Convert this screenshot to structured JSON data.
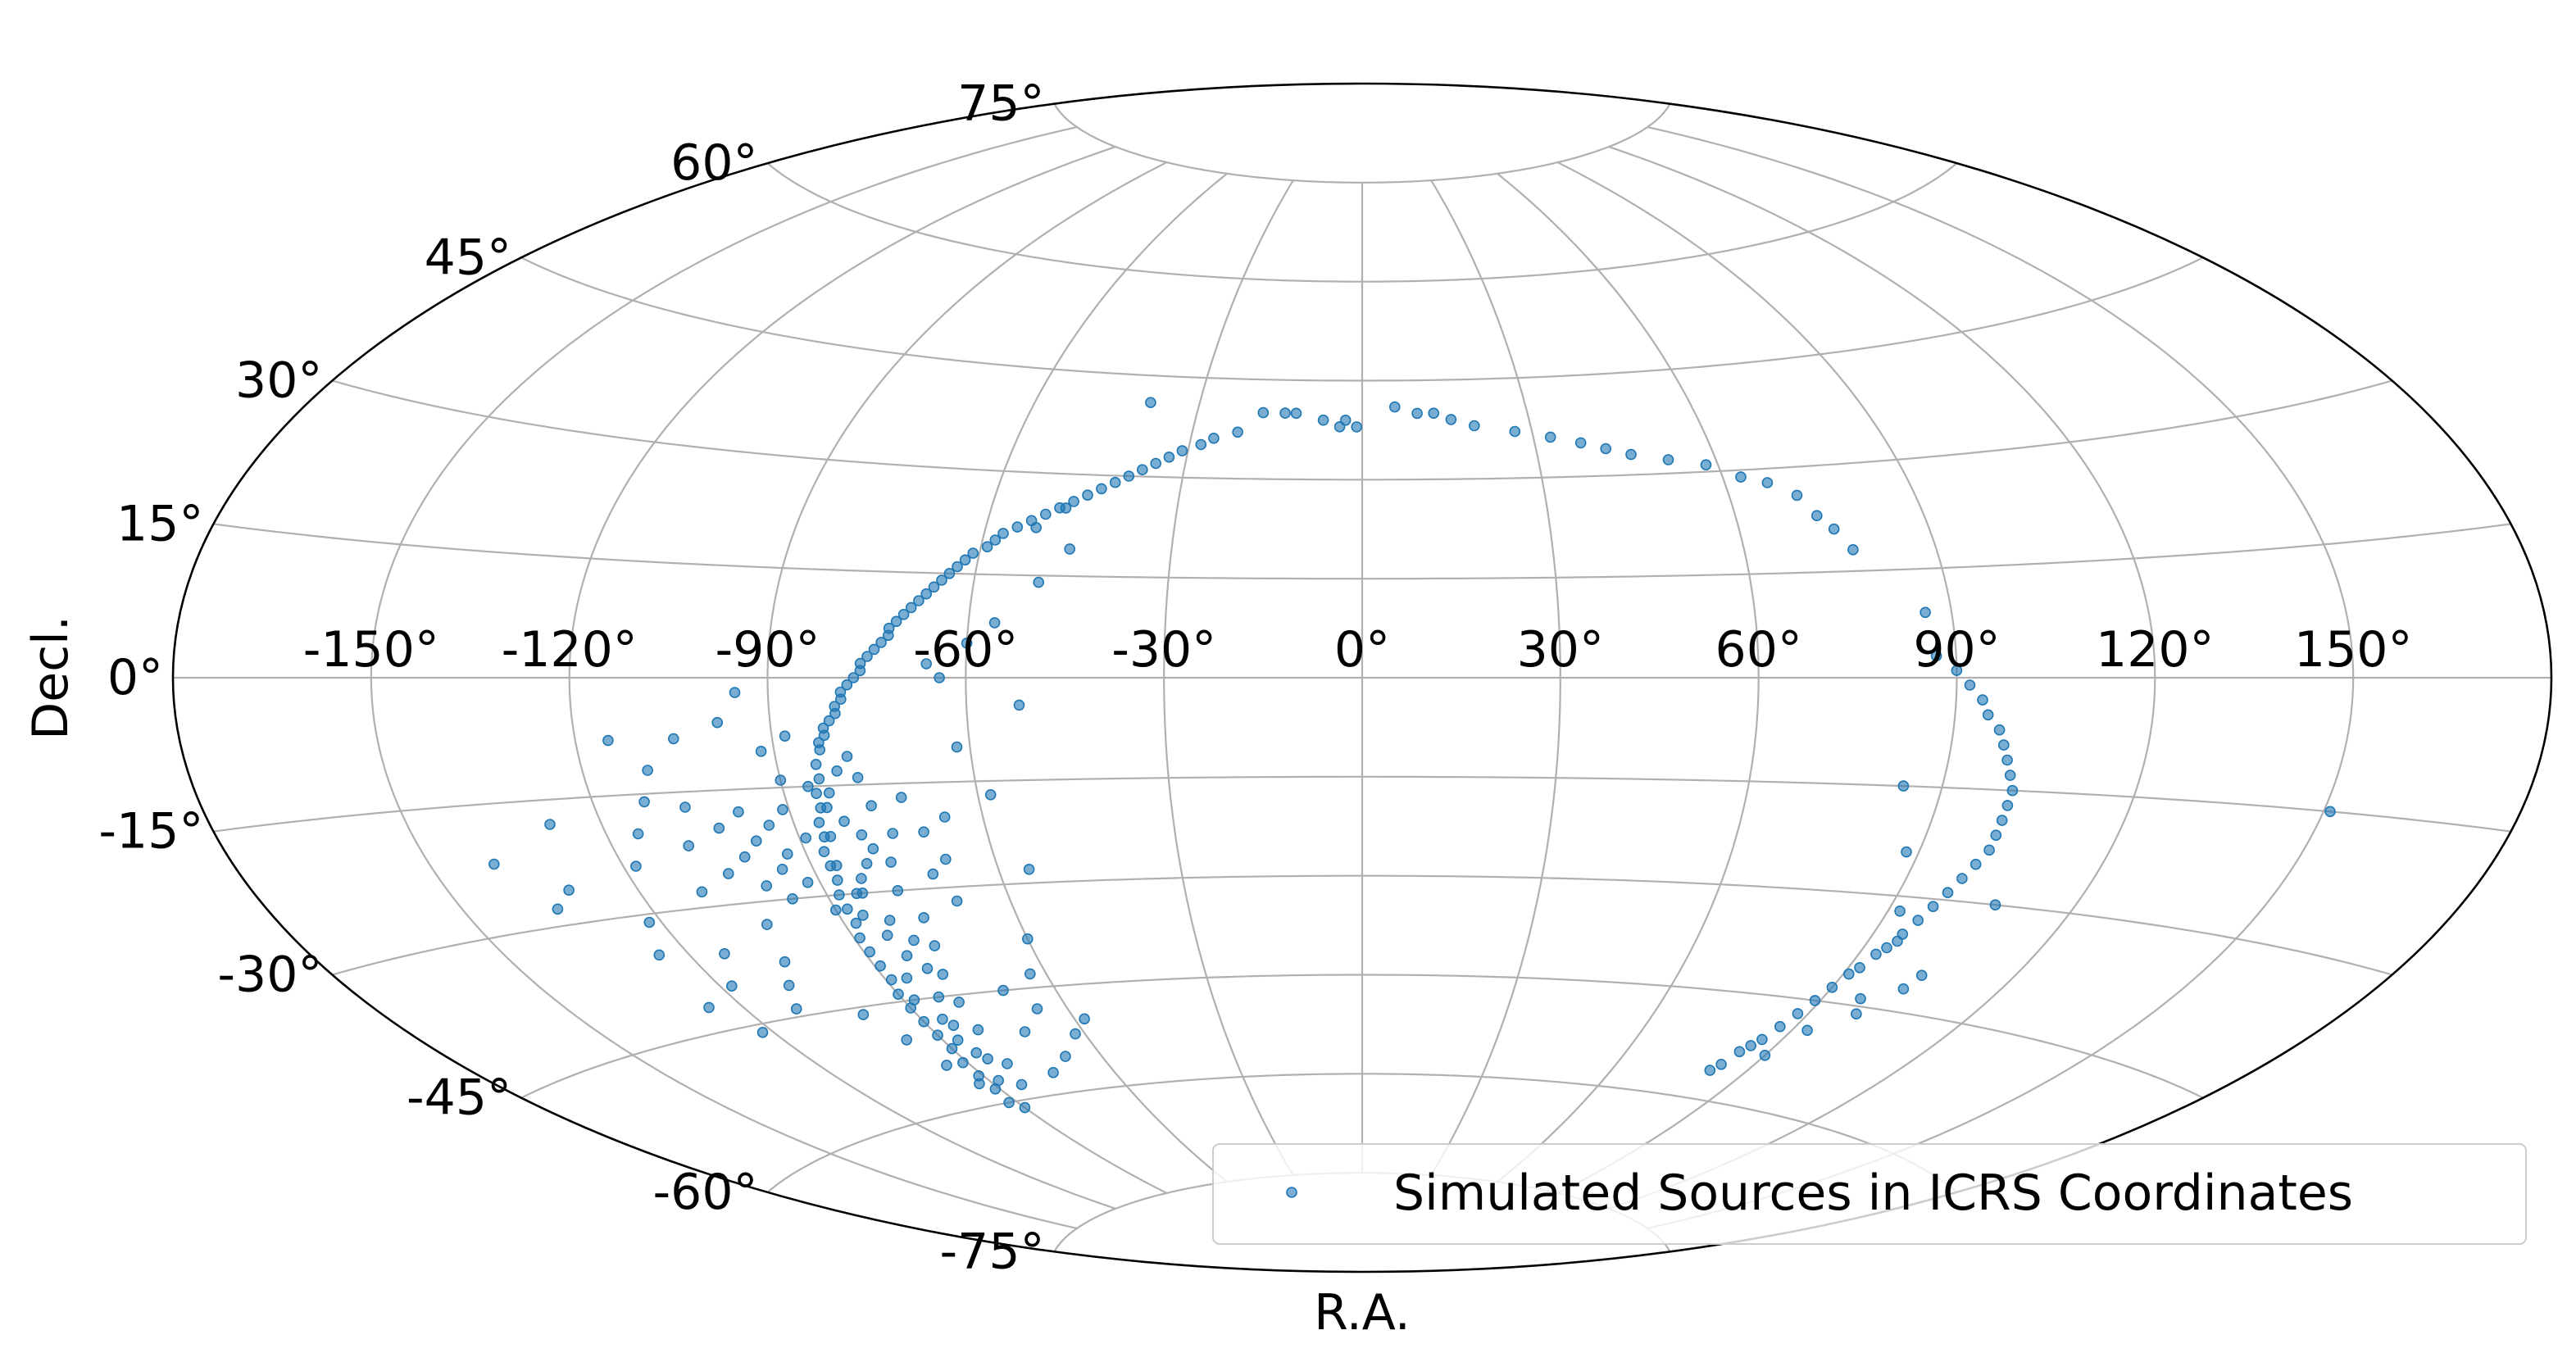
{
  "chart_data": {
    "type": "scatter",
    "projection": "aitoff",
    "title": "",
    "xlabel": "R.A.",
    "ylabel": "Decl.",
    "xlim": [
      -180,
      180
    ],
    "ylim": [
      -90,
      90
    ],
    "grid": true,
    "x_ticks": [
      "-150°",
      "-120°",
      "-90°",
      "-60°",
      "-30°",
      "0°",
      "30°",
      "60°",
      "90°",
      "120°",
      "150°"
    ],
    "x_tick_values": [
      -150,
      -120,
      -90,
      -60,
      -30,
      0,
      30,
      60,
      90,
      120,
      150
    ],
    "y_ticks": [
      "-75°",
      "-60°",
      "-45°",
      "-30°",
      "-15°",
      "0°",
      "15°",
      "30°",
      "45°",
      "60°",
      "75°"
    ],
    "y_tick_values": [
      -75,
      -60,
      -45,
      -30,
      -15,
      0,
      15,
      30,
      45,
      60,
      75
    ],
    "legend": {
      "position": "lower-right",
      "entries": [
        "Simulated Sources in ICRS Coordinates"
      ]
    },
    "series": [
      {
        "name": "Simulated Sources in ICRS Coordinates",
        "color": "#1f77b4",
        "marker": "circle",
        "points": [
          [
            -39,
            41
          ],
          [
            -18,
            40
          ],
          [
            -14,
            40
          ],
          [
            -12,
            40
          ],
          [
            -7,
            39
          ],
          [
            -4,
            38
          ],
          [
            -3,
            39
          ],
          [
            -1,
            38
          ],
          [
            -22,
            37
          ],
          [
            -26,
            36
          ],
          [
            -28,
            35
          ],
          [
            -31,
            34
          ],
          [
            -33,
            33
          ],
          [
            -35,
            32
          ],
          [
            -37,
            31
          ],
          [
            -39,
            30
          ],
          [
            -41,
            29
          ],
          [
            -43,
            28
          ],
          [
            -45,
            27
          ],
          [
            -47,
            26
          ],
          [
            -49,
            25
          ],
          [
            -51,
            24
          ],
          [
            -53,
            23
          ],
          [
            -55,
            22
          ],
          [
            -57,
            21
          ],
          [
            -58,
            20
          ],
          [
            -59,
            19
          ],
          [
            -61,
            18
          ],
          [
            -62,
            17
          ],
          [
            -63,
            16
          ],
          [
            -64,
            15
          ],
          [
            -65,
            14
          ],
          [
            -66,
            13
          ],
          [
            -67,
            12
          ],
          [
            -68,
            11
          ],
          [
            -69,
            10
          ],
          [
            -70,
            9
          ],
          [
            -71,
            8
          ],
          [
            -72,
            7
          ],
          [
            -72,
            6
          ],
          [
            -73,
            5
          ],
          [
            -74,
            4
          ],
          [
            -75,
            3
          ],
          [
            -76,
            2
          ],
          [
            -76,
            1
          ],
          [
            -77,
            0
          ],
          [
            -78,
            -1
          ],
          [
            -79,
            -2
          ],
          [
            -79,
            -3
          ],
          [
            -80,
            -4
          ],
          [
            -80,
            -5
          ],
          [
            -81,
            -6
          ],
          [
            -82,
            -7
          ],
          [
            -82,
            -8
          ],
          [
            -83,
            -9
          ],
          [
            -83,
            -10
          ],
          [
            -84,
            -12
          ],
          [
            -84,
            -14
          ],
          [
            -85,
            -16
          ],
          [
            -85,
            -18
          ],
          [
            -86,
            -20
          ],
          [
            -86,
            -22
          ],
          [
            -87,
            -24
          ],
          [
            -87,
            -26
          ],
          [
            -87,
            -28
          ],
          [
            -88,
            -30
          ],
          [
            -88,
            -32
          ],
          [
            -88,
            -34
          ],
          [
            -89,
            -36
          ],
          [
            -89,
            -38
          ],
          [
            -89,
            -40
          ],
          [
            -89,
            -42
          ],
          [
            -90,
            -44
          ],
          [
            -90,
            -46
          ],
          [
            -90,
            -48
          ],
          [
            -90,
            -50
          ],
          [
            -90,
            -52
          ],
          [
            -91,
            -54
          ],
          [
            -91,
            -56
          ],
          [
            -91,
            -58
          ],
          [
            -92,
            -60
          ],
          [
            -90,
            -61
          ],
          [
            -86,
            -15
          ],
          [
            -84,
            -18
          ],
          [
            -82,
            -20
          ],
          [
            -80,
            -22
          ],
          [
            -79,
            -24
          ],
          [
            -81,
            -26
          ],
          [
            -83,
            -28
          ],
          [
            -85,
            -30
          ],
          [
            -86,
            -33
          ],
          [
            -84,
            -36
          ],
          [
            -83,
            -39
          ],
          [
            -86,
            -42
          ],
          [
            -88,
            -45
          ],
          [
            -86,
            -48
          ],
          [
            -87,
            -51
          ],
          [
            -85,
            -54
          ],
          [
            -88,
            -57
          ],
          [
            -84,
            -58
          ],
          [
            -82,
            -55
          ],
          [
            -81,
            -50
          ],
          [
            -80,
            -46
          ],
          [
            -79,
            -42
          ],
          [
            -77,
            -38
          ],
          [
            -76,
            -34
          ],
          [
            -78,
            -30
          ],
          [
            -77,
            -26
          ],
          [
            -75,
            -22
          ],
          [
            -77,
            -18
          ],
          [
            -78,
            -14
          ],
          [
            -79,
            -11
          ],
          [
            -81,
            -13
          ],
          [
            -83,
            -16
          ],
          [
            -85,
            -22
          ],
          [
            -86,
            -26
          ],
          [
            -84,
            -30
          ],
          [
            -82,
            -34
          ],
          [
            -80,
            -37
          ],
          [
            -81,
            -41
          ],
          [
            -83,
            -45
          ],
          [
            -85,
            -49
          ],
          [
            -86,
            -53
          ],
          [
            -89,
            -22
          ],
          [
            -91,
            -18
          ],
          [
            -93,
            -24
          ],
          [
            -92,
            -28
          ],
          [
            -90,
            -32
          ],
          [
            -94,
            -20
          ],
          [
            -95,
            -26
          ],
          [
            -96,
            -30
          ],
          [
            -97,
            -22
          ],
          [
            -98,
            -18
          ],
          [
            -100,
            -24
          ],
          [
            -99,
            -28
          ],
          [
            -102,
            -20
          ],
          [
            -104,
            -26
          ],
          [
            -106,
            -17
          ],
          [
            -108,
            -22
          ],
          [
            -110,
            -28
          ],
          [
            -112,
            -16
          ],
          [
            -115,
            -20
          ],
          [
            -118,
            -24
          ],
          [
            -122,
            -31
          ],
          [
            -125,
            -35
          ],
          [
            -128,
            -18
          ],
          [
            -131,
            -26
          ],
          [
            -135,
            -28
          ],
          [
            -140,
            -22
          ],
          [
            -103,
            -33
          ],
          [
            -105,
            -38
          ],
          [
            -108,
            -41
          ],
          [
            -111,
            -44
          ],
          [
            -114,
            -36
          ],
          [
            -118,
            -40
          ],
          [
            -122,
            -46
          ],
          [
            -126,
            -42
          ],
          [
            -100,
            -46
          ],
          [
            -97,
            -50
          ],
          [
            -95,
            -54
          ],
          [
            -93,
            -57
          ],
          [
            -72,
            -17
          ],
          [
            -70,
            -22
          ],
          [
            -68,
            -26
          ],
          [
            -71,
            -28
          ],
          [
            -69,
            -32
          ],
          [
            -66,
            -20
          ],
          [
            -62,
            -10
          ],
          [
            -58,
            -17
          ],
          [
            -55,
            -28
          ],
          [
            -60,
            -38
          ],
          [
            -63,
            -43
          ],
          [
            -66,
            -48
          ],
          [
            -62,
            -52
          ],
          [
            -58,
            -50
          ],
          [
            -70,
            -45
          ],
          [
            -72,
            -51
          ],
          [
            -68,
            -55
          ],
          [
            -74,
            -57
          ],
          [
            -52,
            -4
          ],
          [
            -56,
            8
          ],
          [
            -50,
            14
          ],
          [
            -46,
            19
          ],
          [
            -48,
            25
          ],
          [
            -52,
            22
          ],
          [
            -66,
            2
          ],
          [
            -64,
            0
          ],
          [
            -60,
            5
          ],
          [
            -105,
            -8
          ],
          [
            -98,
            -6
          ],
          [
            -110,
            -12
          ],
          [
            -115,
            -8
          ],
          [
            -95,
            -2
          ],
          [
            -92,
            -10
          ],
          [
            -90,
            -14
          ],
          [
            -88,
            -8
          ],
          [
            6,
            41
          ],
          [
            10,
            40
          ],
          [
            13,
            40
          ],
          [
            16,
            39
          ],
          [
            20,
            38
          ],
          [
            27,
            37
          ],
          [
            33,
            36
          ],
          [
            38,
            35
          ],
          [
            42,
            34
          ],
          [
            46,
            33
          ],
          [
            52,
            32
          ],
          [
            58,
            31
          ],
          [
            63,
            29
          ],
          [
            67,
            28
          ],
          [
            71,
            26
          ],
          [
            73,
            23
          ],
          [
            75,
            21
          ],
          [
            77,
            18
          ],
          [
            86,
            9
          ],
          [
            87,
            3
          ],
          [
            90,
            1
          ],
          [
            92,
            -1
          ],
          [
            94,
            -3
          ],
          [
            95,
            -5
          ],
          [
            97,
            -7
          ],
          [
            98,
            -9
          ],
          [
            99,
            -11
          ],
          [
            100,
            -13
          ],
          [
            101,
            -15
          ],
          [
            101,
            -17
          ],
          [
            101,
            -19
          ],
          [
            101,
            -21
          ],
          [
            101,
            -23
          ],
          [
            100,
            -25
          ],
          [
            99,
            -27
          ],
          [
            98,
            -29
          ],
          [
            97,
            -31
          ],
          [
            96,
            -33
          ],
          [
            95,
            -35
          ],
          [
            94,
            -37
          ],
          [
            93,
            -38
          ],
          [
            92,
            -40
          ],
          [
            91,
            -41
          ],
          [
            90,
            -43
          ],
          [
            89,
            -45
          ],
          [
            88,
            -47
          ],
          [
            87,
            -49
          ],
          [
            86,
            -51
          ],
          [
            85,
            -52
          ],
          [
            84,
            -53
          ],
          [
            83,
            -55
          ],
          [
            82,
            -56
          ],
          [
            88,
            -24
          ],
          [
            104,
            -40
          ],
          [
            97,
            -44
          ],
          [
            93,
            -49
          ],
          [
            90,
            -53
          ],
          [
            95,
            -36
          ],
          [
            92,
            -32
          ],
          [
            107,
            -30
          ],
          [
            84,
            -15
          ],
          [
            151,
            -15
          ],
          [
            99,
            -46
          ],
          [
            103,
            -42
          ]
        ]
      }
    ]
  }
}
